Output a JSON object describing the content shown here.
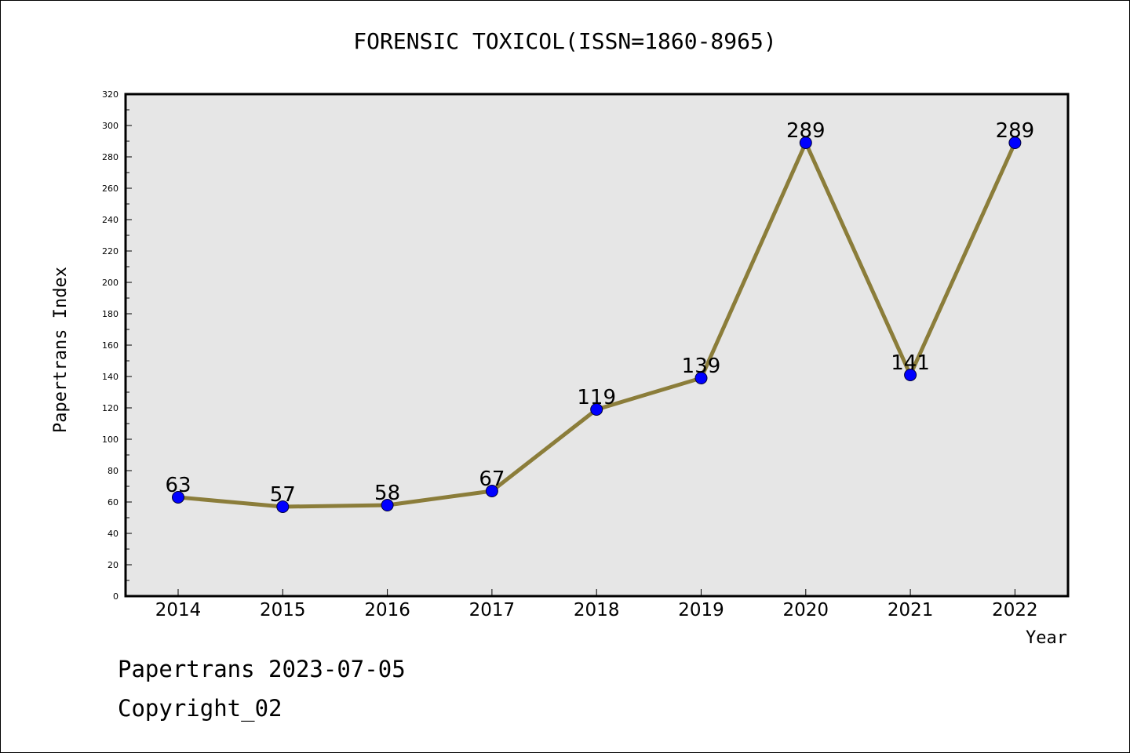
{
  "page": {
    "title": "FORENSIC TOXICOL(ISSN=1860-8965)",
    "footer_line1": "Papertrans 2023-07-05",
    "footer_line2": "Copyright_02"
  },
  "chart_data": {
    "type": "line",
    "title": "FORENSIC TOXICOL(ISSN=1860-8965)",
    "xlabel": "Year",
    "ylabel": "Papertrans Index",
    "categories": [
      "2014",
      "2015",
      "2016",
      "2017",
      "2018",
      "2019",
      "2020",
      "2021",
      "2022"
    ],
    "series": [
      {
        "values": [
          63,
          57,
          58,
          67,
          119,
          139,
          289,
          141,
          289
        ]
      }
    ],
    "ylim": [
      0,
      320
    ],
    "yticks": [
      0,
      20,
      40,
      60,
      80,
      100,
      120,
      140,
      160,
      180,
      200,
      220,
      240,
      260,
      280,
      300,
      320
    ],
    "grid": false,
    "colors": {
      "line": "#8b7d3a",
      "marker": "#0000ff",
      "plot_background": "#e6e6e6"
    }
  }
}
